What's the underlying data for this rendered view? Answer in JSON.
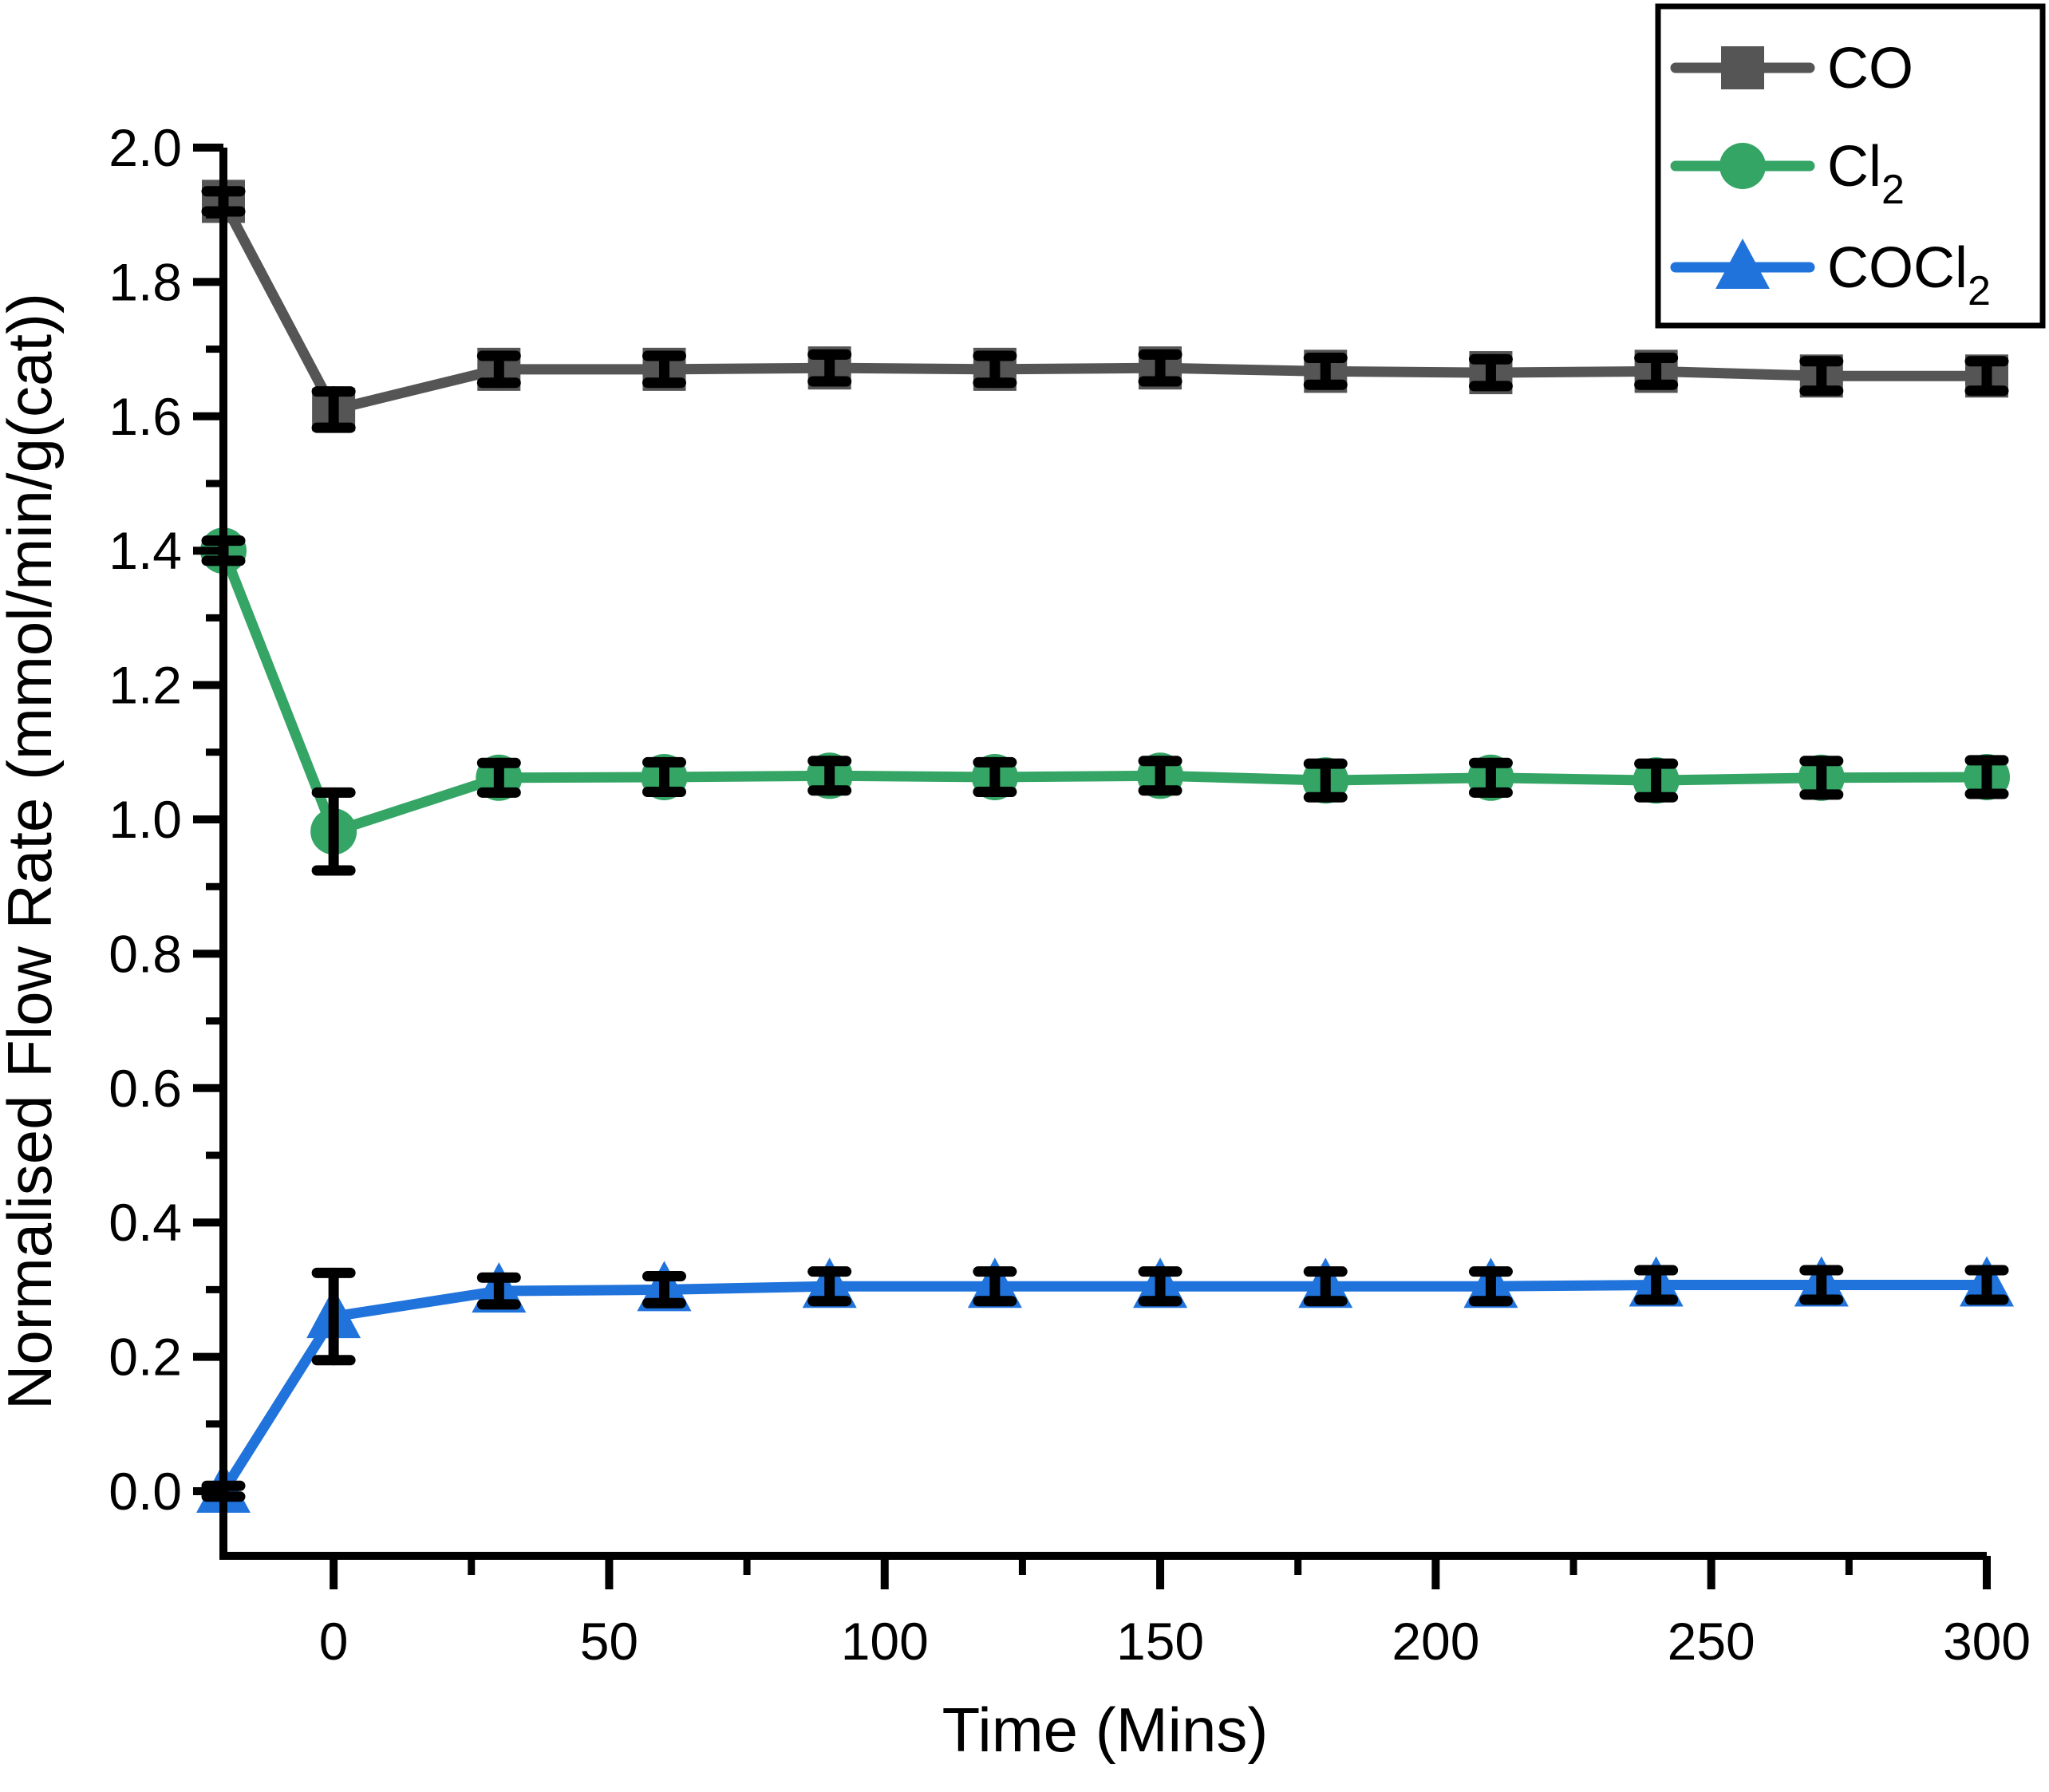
{
  "chart_data": {
    "type": "line",
    "title": "",
    "xlabel": "Time (Mins)",
    "ylabel": "Normalised Flow Rate (mmol/min/g(cat))",
    "xlim": [
      -20,
      300
    ],
    "ylim": [
      -0.095,
      2.0
    ],
    "grid": false,
    "legend_position": "top-right",
    "x_ticks": {
      "major": [
        0,
        50,
        100,
        150,
        200,
        250,
        300
      ],
      "minor": [
        25,
        75,
        125,
        175,
        225,
        275
      ],
      "labels": [
        "0",
        "50",
        "100",
        "150",
        "200",
        "250",
        "300"
      ]
    },
    "y_ticks": {
      "major": [
        0.0,
        0.2,
        0.4,
        0.6,
        0.8,
        1.0,
        1.2,
        1.4,
        1.6,
        1.8,
        2.0
      ],
      "minor": [
        0.1,
        0.3,
        0.5,
        0.7,
        0.9,
        1.1,
        1.3,
        1.5,
        1.7,
        1.9
      ],
      "labels": [
        "0.0",
        "0.2",
        "0.4",
        "0.6",
        "0.8",
        "1.0",
        "1.2",
        "1.4",
        "1.6",
        "1.8",
        "2.0"
      ]
    },
    "x": [
      -20,
      0,
      30,
      60,
      90,
      120,
      150,
      180,
      210,
      240,
      270,
      300
    ],
    "series": [
      {
        "name": "CO",
        "label_main": "CO",
        "label_sub": "",
        "color": "#555555",
        "marker": "square",
        "values": [
          1.92,
          1.61,
          1.67,
          1.67,
          1.672,
          1.67,
          1.672,
          1.667,
          1.665,
          1.667,
          1.66,
          1.66
        ],
        "errors": [
          0.015,
          0.027,
          0.02,
          0.02,
          0.02,
          0.02,
          0.02,
          0.02,
          0.02,
          0.02,
          0.022,
          0.022
        ]
      },
      {
        "name": "Cl2",
        "label_main": "Cl",
        "label_sub": "2",
        "color": "#35A566",
        "marker": "circle",
        "values": [
          1.4,
          0.982,
          1.062,
          1.063,
          1.065,
          1.063,
          1.065,
          1.058,
          1.062,
          1.058,
          1.062,
          1.063
        ],
        "errors": [
          0.015,
          0.058,
          0.022,
          0.022,
          0.022,
          0.022,
          0.022,
          0.025,
          0.022,
          0.025,
          0.025,
          0.025
        ]
      },
      {
        "name": "COCl2",
        "label_main": "COCl",
        "label_sub": "2",
        "color": "#2173DC",
        "marker": "triangle",
        "values": [
          0.0,
          0.26,
          0.298,
          0.3,
          0.305,
          0.305,
          0.305,
          0.305,
          0.305,
          0.307,
          0.307,
          0.307
        ],
        "errors": [
          0.008,
          0.065,
          0.02,
          0.02,
          0.022,
          0.022,
          0.022,
          0.022,
          0.022,
          0.022,
          0.022,
          0.022
        ]
      }
    ],
    "error_bar_color": "#000000",
    "axis_color": "#000000"
  }
}
